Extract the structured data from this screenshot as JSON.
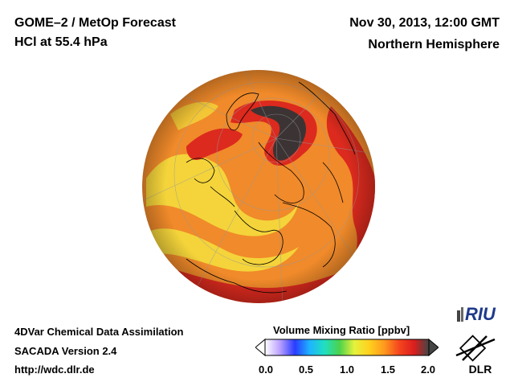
{
  "header": {
    "title_line1": "GOME–2 / MetOp Forecast",
    "title_line2": "HCl at 55.4 hPa",
    "date": "Nov 30, 2013, 12:00 GMT",
    "region": "Northern Hemisphere"
  },
  "footer": {
    "line1": "4DVar Chemical Data Assimilation",
    "line2": "SACADA Version 2.4",
    "line3": "http://wdc.dlr.de"
  },
  "colorbar": {
    "title": "Volume Mixing Ratio [ppbv]",
    "ticks": [
      "0.0",
      "0.5",
      "1.0",
      "1.5",
      "2.0"
    ],
    "range": [
      0.0,
      2.0
    ],
    "colors": [
      "#ffffff",
      "#b9a0ff",
      "#2a3cff",
      "#1eb4ff",
      "#20e0c0",
      "#4cd24c",
      "#e6f23c",
      "#ffd01e",
      "#ff9a1e",
      "#f5461e",
      "#dc1e1e",
      "#444444"
    ]
  },
  "logos": {
    "riu": "RIU",
    "dlr": "DLR"
  },
  "map": {
    "projection": "orthographic-north-polar",
    "colors": {
      "background_orange": "#f08a2a",
      "yellow": "#f4d43a",
      "red": "#dc2a1e",
      "dark": "#3c3434"
    }
  }
}
